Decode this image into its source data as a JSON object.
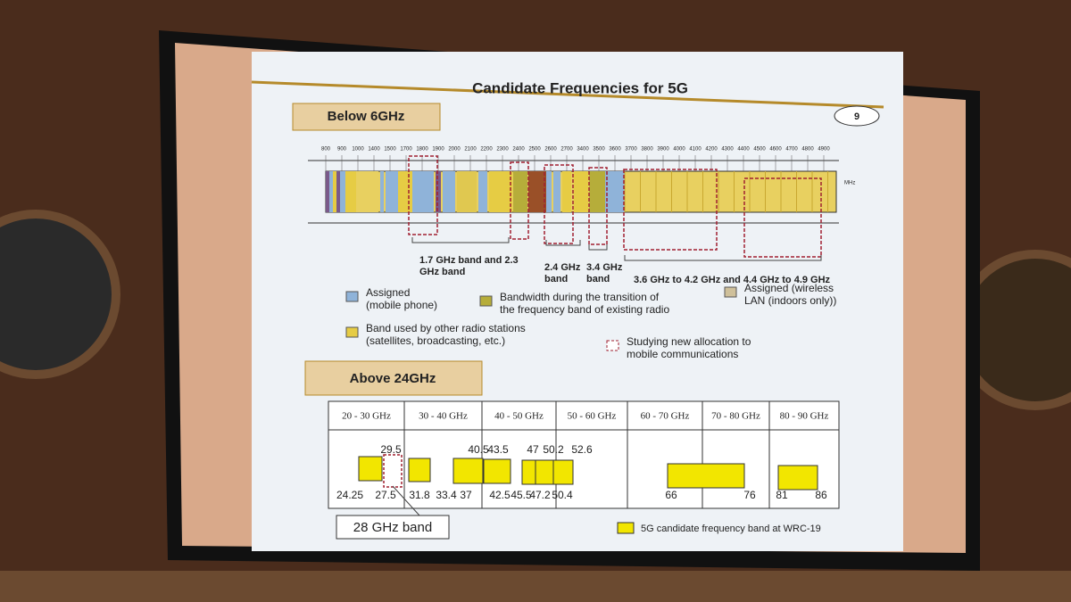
{
  "slide": {
    "title": "Candidate Frequencies for 5G",
    "page_number": "9",
    "below_6ghz": {
      "heading": "Below 6GHz",
      "axis_labels": [
        "800",
        "900",
        "1000",
        "1400",
        "1500",
        "1700",
        "1800",
        "1900",
        "2000",
        "2100",
        "2200",
        "2300",
        "2400",
        "2500",
        "2600",
        "2700",
        "3400",
        "3500",
        "3600",
        "3700",
        "3800",
        "3900",
        "4000",
        "4100",
        "4200",
        "4300",
        "4400",
        "4500",
        "4600",
        "4700",
        "4800",
        "4900"
      ],
      "axis_unit": "MHz",
      "band_labels": [
        {
          "lines": [
            "1.7 GHz band and 2.3",
            "GHz band"
          ]
        },
        {
          "lines": [
            "2.4 GHz",
            "band"
          ]
        },
        {
          "lines": [
            "3.4 GHz",
            "band"
          ]
        },
        {
          "lines": [
            "3.6 GHz to 4.2 GHz and 4.4 GHz to 4.9 GHz"
          ]
        }
      ],
      "legend": [
        {
          "lines": [
            "Assigned",
            "(mobile phone)"
          ]
        },
        {
          "lines": [
            "Bandwidth during the transition of",
            "the frequency band of existing radio"
          ]
        },
        {
          "lines": [
            "Assigned (wireless",
            "LAN (indoors only))"
          ]
        },
        {
          "lines": [
            "Band used by other radio stations",
            "(satellites, broadcasting, etc.)"
          ]
        },
        {
          "lines": [
            "Studying new allocation to",
            "mobile communications"
          ]
        }
      ]
    },
    "above_24ghz": {
      "heading": "Above 24GHz",
      "ranges": [
        "20 - 30 GHz",
        "30 - 40 GHz",
        "40 - 50 GHz",
        "50 - 60 GHz",
        "60 - 70 GHz",
        "70 - 80 GHz",
        "80 - 90 GHz"
      ],
      "upper_labels": [
        "29.5",
        "40.5",
        "43.5",
        "47",
        "50.2",
        "52.6"
      ],
      "lower_labels": [
        "24.25",
        "27.5",
        "31.8",
        "33.4",
        "37",
        "42.5",
        "45.5",
        "47.2",
        "50.4",
        "66",
        "76",
        "81",
        "86"
      ],
      "callout": "28 GHz band",
      "legend": "5G candidate frequency band at WRC-19"
    }
  }
}
